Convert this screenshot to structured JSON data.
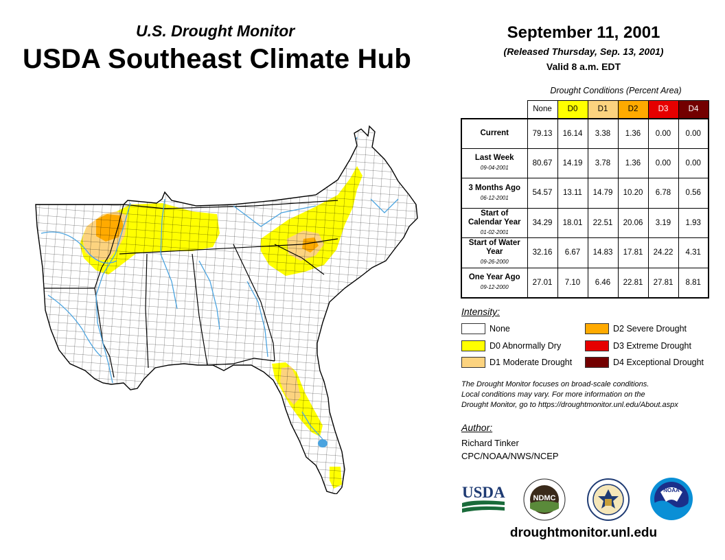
{
  "header": {
    "supertitle": "U.S. Drought Monitor",
    "title": "USDA Southeast Climate Hub",
    "date": "September 11, 2001",
    "released": "(Released Thursday, Sep. 13, 2001)",
    "valid": "Valid 8 a.m. EDT"
  },
  "table": {
    "caption": "Drought Conditions (Percent Area)",
    "columns": [
      "None",
      "D0",
      "D1",
      "D2",
      "D3",
      "D4"
    ],
    "rows": [
      {
        "label": "Current",
        "sublabel": "",
        "values": [
          "79.13",
          "16.14",
          "3.38",
          "1.36",
          "0.00",
          "0.00"
        ]
      },
      {
        "label": "Last Week",
        "sublabel": "09-04-2001",
        "values": [
          "80.67",
          "14.19",
          "3.78",
          "1.36",
          "0.00",
          "0.00"
        ]
      },
      {
        "label": "3 Months Ago",
        "sublabel": "06-12-2001",
        "values": [
          "54.57",
          "13.11",
          "14.79",
          "10.20",
          "6.78",
          "0.56"
        ]
      },
      {
        "label": "Start of Calendar Year",
        "sublabel": "01-02-2001",
        "values": [
          "34.29",
          "18.01",
          "22.51",
          "20.06",
          "3.19",
          "1.93"
        ]
      },
      {
        "label": "Start of Water Year",
        "sublabel": "09-26-2000",
        "values": [
          "32.16",
          "6.67",
          "14.83",
          "17.81",
          "24.22",
          "4.31"
        ]
      },
      {
        "label": "One Year Ago",
        "sublabel": "09-12-2000",
        "values": [
          "27.01",
          "7.10",
          "6.46",
          "22.81",
          "27.81",
          "8.81"
        ]
      }
    ]
  },
  "legend": {
    "title": "Intensity:",
    "items": [
      {
        "label": "None",
        "color": "#ffffff"
      },
      {
        "label": "D0 Abnormally Dry",
        "color": "#ffff00"
      },
      {
        "label": "D1 Moderate Drought",
        "color": "#fcd37f"
      },
      {
        "label": "D2 Severe Drought",
        "color": "#ffaa00"
      },
      {
        "label": "D3 Extreme Drought",
        "color": "#e60000"
      },
      {
        "label": "D4 Exceptional Drought",
        "color": "#730000"
      }
    ]
  },
  "disclaimer": [
    "The Drought Monitor focuses on broad-scale conditions.",
    "Local conditions may vary. For more information on the",
    "Drought Monitor, go to https://droughtmonitor.unl.edu/About.aspx"
  ],
  "author": {
    "title": "Author:",
    "name": "Richard Tinker",
    "org": "CPC/NOAA/NWS/NCEP"
  },
  "logos": {
    "usda": "USDA",
    "ndmc": "NDMC",
    "noaa": "NOAA"
  },
  "footer": {
    "url": "droughtmonitor.unl.edu"
  },
  "colors": {
    "none": "#ffffff",
    "d0": "#ffff00",
    "d1": "#fcd37f",
    "d2": "#ffaa00",
    "d3": "#e60000",
    "d4": "#730000",
    "water": "#4aa3df",
    "border": "#000000"
  }
}
